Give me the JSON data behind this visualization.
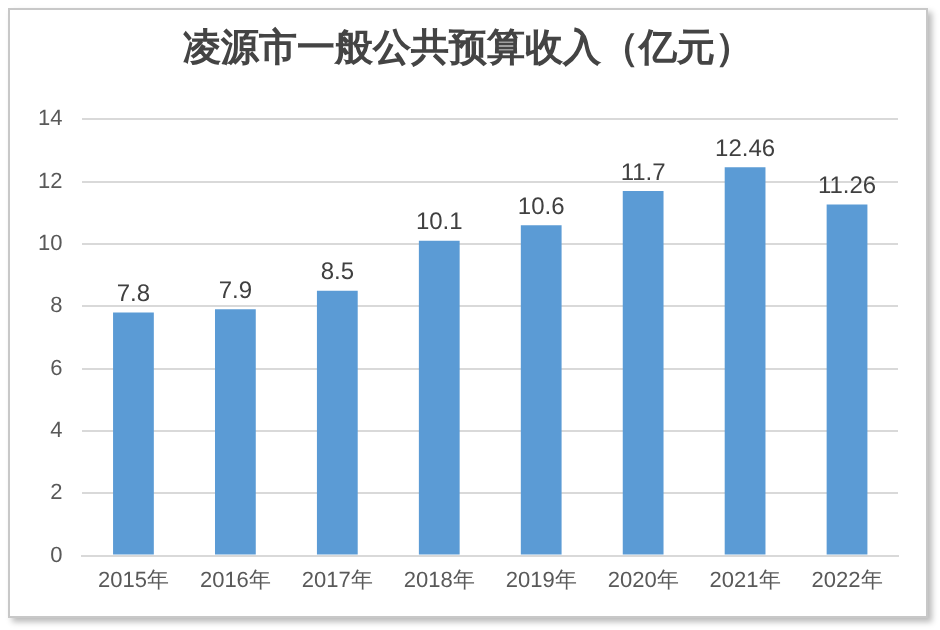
{
  "chart_data": {
    "type": "bar",
    "title": "凌源市一般公共预算收入（亿元）",
    "categories": [
      "2015年",
      "2016年",
      "2017年",
      "2018年",
      "2019年",
      "2020年",
      "2021年",
      "2022年"
    ],
    "values": [
      7.8,
      7.9,
      8.5,
      10.1,
      10.6,
      11.7,
      12.46,
      11.26
    ],
    "color": "#5b9bd5",
    "ylim": [
      0,
      14
    ],
    "yticks": [
      0,
      2,
      4,
      6,
      8,
      10,
      12,
      14
    ],
    "grid": "y",
    "data_labels": true
  }
}
